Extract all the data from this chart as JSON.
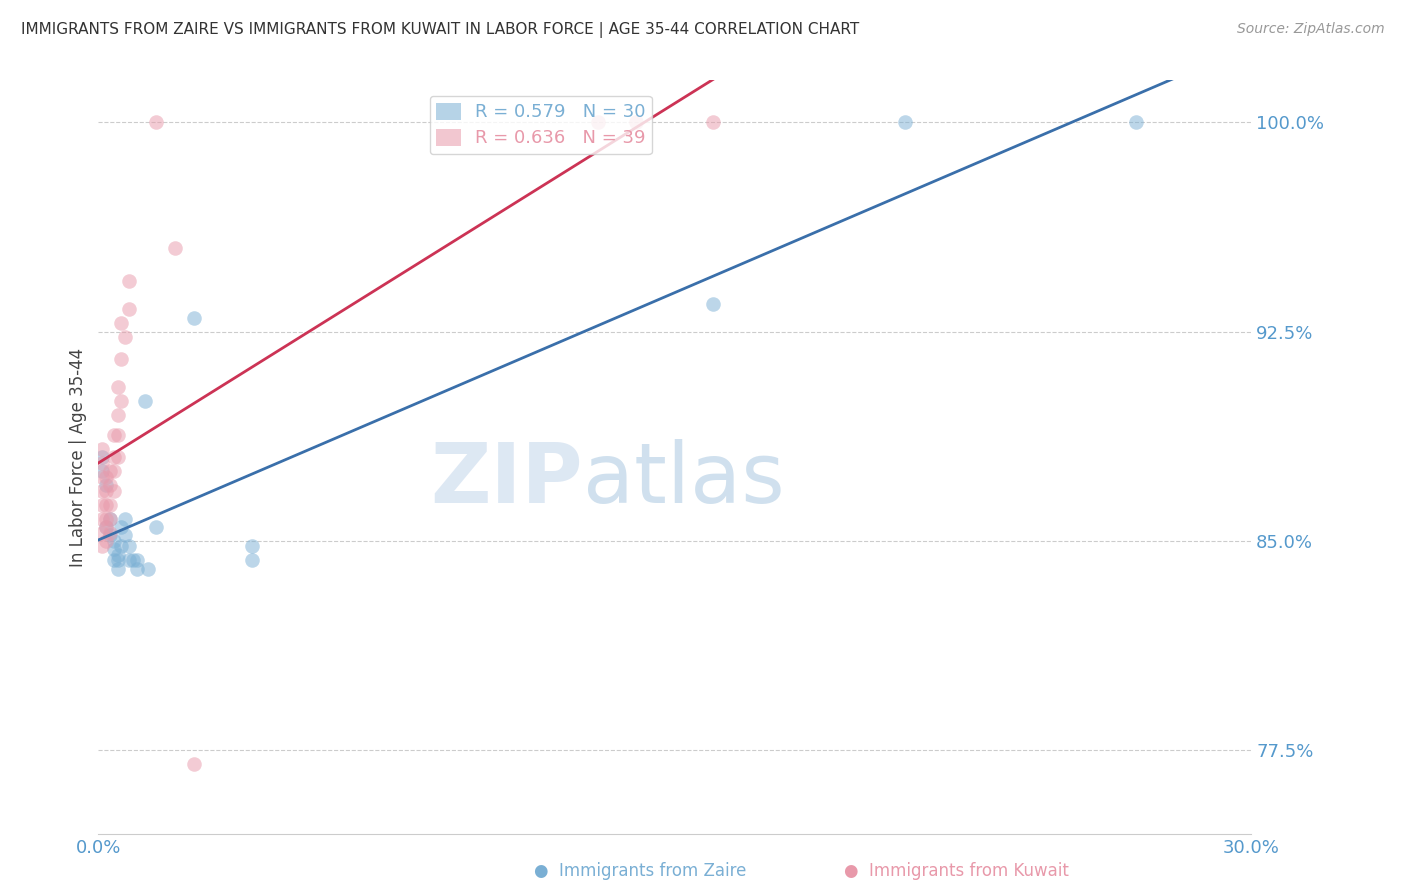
{
  "title": "IMMIGRANTS FROM ZAIRE VS IMMIGRANTS FROM KUWAIT IN LABOR FORCE | AGE 35-44 CORRELATION CHART",
  "source": "Source: ZipAtlas.com",
  "ylabel": "In Labor Force | Age 35-44",
  "xlim": [
    0.0,
    0.3
  ],
  "ylim": [
    0.745,
    1.015
  ],
  "yticks": [
    0.775,
    0.85,
    0.925,
    1.0
  ],
  "ytick_labels": [
    "77.5%",
    "85.0%",
    "92.5%",
    "100.0%"
  ],
  "xticks": [
    0.0,
    0.05,
    0.1,
    0.15,
    0.2,
    0.25,
    0.3
  ],
  "xtick_labels": [
    "0.0%",
    "",
    "",
    "",
    "",
    "",
    "30.0%"
  ],
  "zaire_color": "#7aafd4",
  "kuwait_color": "#e899aa",
  "zaire_line_color": "#3a6faa",
  "kuwait_line_color": "#cc3355",
  "axis_color": "#5599cc",
  "legend_zaire": "R = 0.579   N = 30",
  "legend_kuwait": "R = 0.636   N = 39",
  "zaire_x": [
    0.001,
    0.001,
    0.002,
    0.002,
    0.003,
    0.003,
    0.004,
    0.004,
    0.004,
    0.005,
    0.005,
    0.005,
    0.006,
    0.006,
    0.007,
    0.007,
    0.008,
    0.008,
    0.009,
    0.01,
    0.01,
    0.012,
    0.013,
    0.015,
    0.025,
    0.04,
    0.04,
    0.16,
    0.21,
    0.27
  ],
  "zaire_y": [
    0.88,
    0.875,
    0.87,
    0.855,
    0.858,
    0.852,
    0.85,
    0.847,
    0.843,
    0.845,
    0.843,
    0.84,
    0.855,
    0.848,
    0.858,
    0.852,
    0.848,
    0.843,
    0.843,
    0.843,
    0.84,
    0.9,
    0.84,
    0.855,
    0.93,
    0.848,
    0.843,
    0.935,
    1.0,
    1.0
  ],
  "kuwait_x": [
    0.001,
    0.001,
    0.001,
    0.001,
    0.001,
    0.001,
    0.001,
    0.001,
    0.002,
    0.002,
    0.002,
    0.002,
    0.002,
    0.002,
    0.003,
    0.003,
    0.003,
    0.003,
    0.003,
    0.004,
    0.004,
    0.004,
    0.004,
    0.005,
    0.005,
    0.005,
    0.005,
    0.006,
    0.006,
    0.006,
    0.007,
    0.008,
    0.008,
    0.015,
    0.02,
    0.025,
    0.13,
    0.14,
    0.16
  ],
  "kuwait_y": [
    0.848,
    0.853,
    0.858,
    0.863,
    0.868,
    0.873,
    0.878,
    0.883,
    0.85,
    0.855,
    0.858,
    0.863,
    0.868,
    0.873,
    0.853,
    0.858,
    0.863,
    0.87,
    0.875,
    0.868,
    0.875,
    0.88,
    0.888,
    0.88,
    0.888,
    0.895,
    0.905,
    0.9,
    0.915,
    0.928,
    0.923,
    0.933,
    0.943,
    1.0,
    0.955,
    0.77,
    1.0,
    1.0,
    1.0
  ]
}
